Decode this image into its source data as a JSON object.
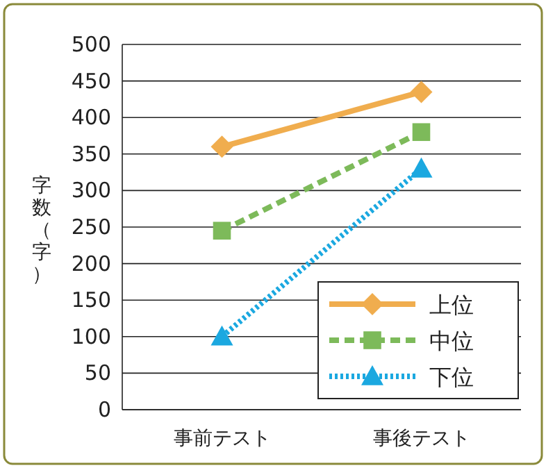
{
  "chart_data": {
    "type": "line",
    "ylabel": "字数（字）",
    "categories": [
      "事前テスト",
      "事後テスト"
    ],
    "series": [
      {
        "name": "上位",
        "color": "#f0ad4e",
        "values": [
          360,
          435
        ],
        "marker": "diamond",
        "line_style": "solid"
      },
      {
        "name": "中位",
        "color": "#7dba5a",
        "values": [
          245,
          380
        ],
        "marker": "square",
        "line_style": "dashed"
      },
      {
        "name": "下位",
        "color": "#1ba8e0",
        "values": [
          100,
          330
        ],
        "marker": "triangle",
        "line_style": "dotted"
      }
    ],
    "ylim": [
      0,
      500
    ],
    "yticks": [
      0,
      50,
      100,
      150,
      200,
      250,
      300,
      350,
      400,
      450,
      500
    ],
    "grid": "y",
    "legend": "bottom right"
  }
}
